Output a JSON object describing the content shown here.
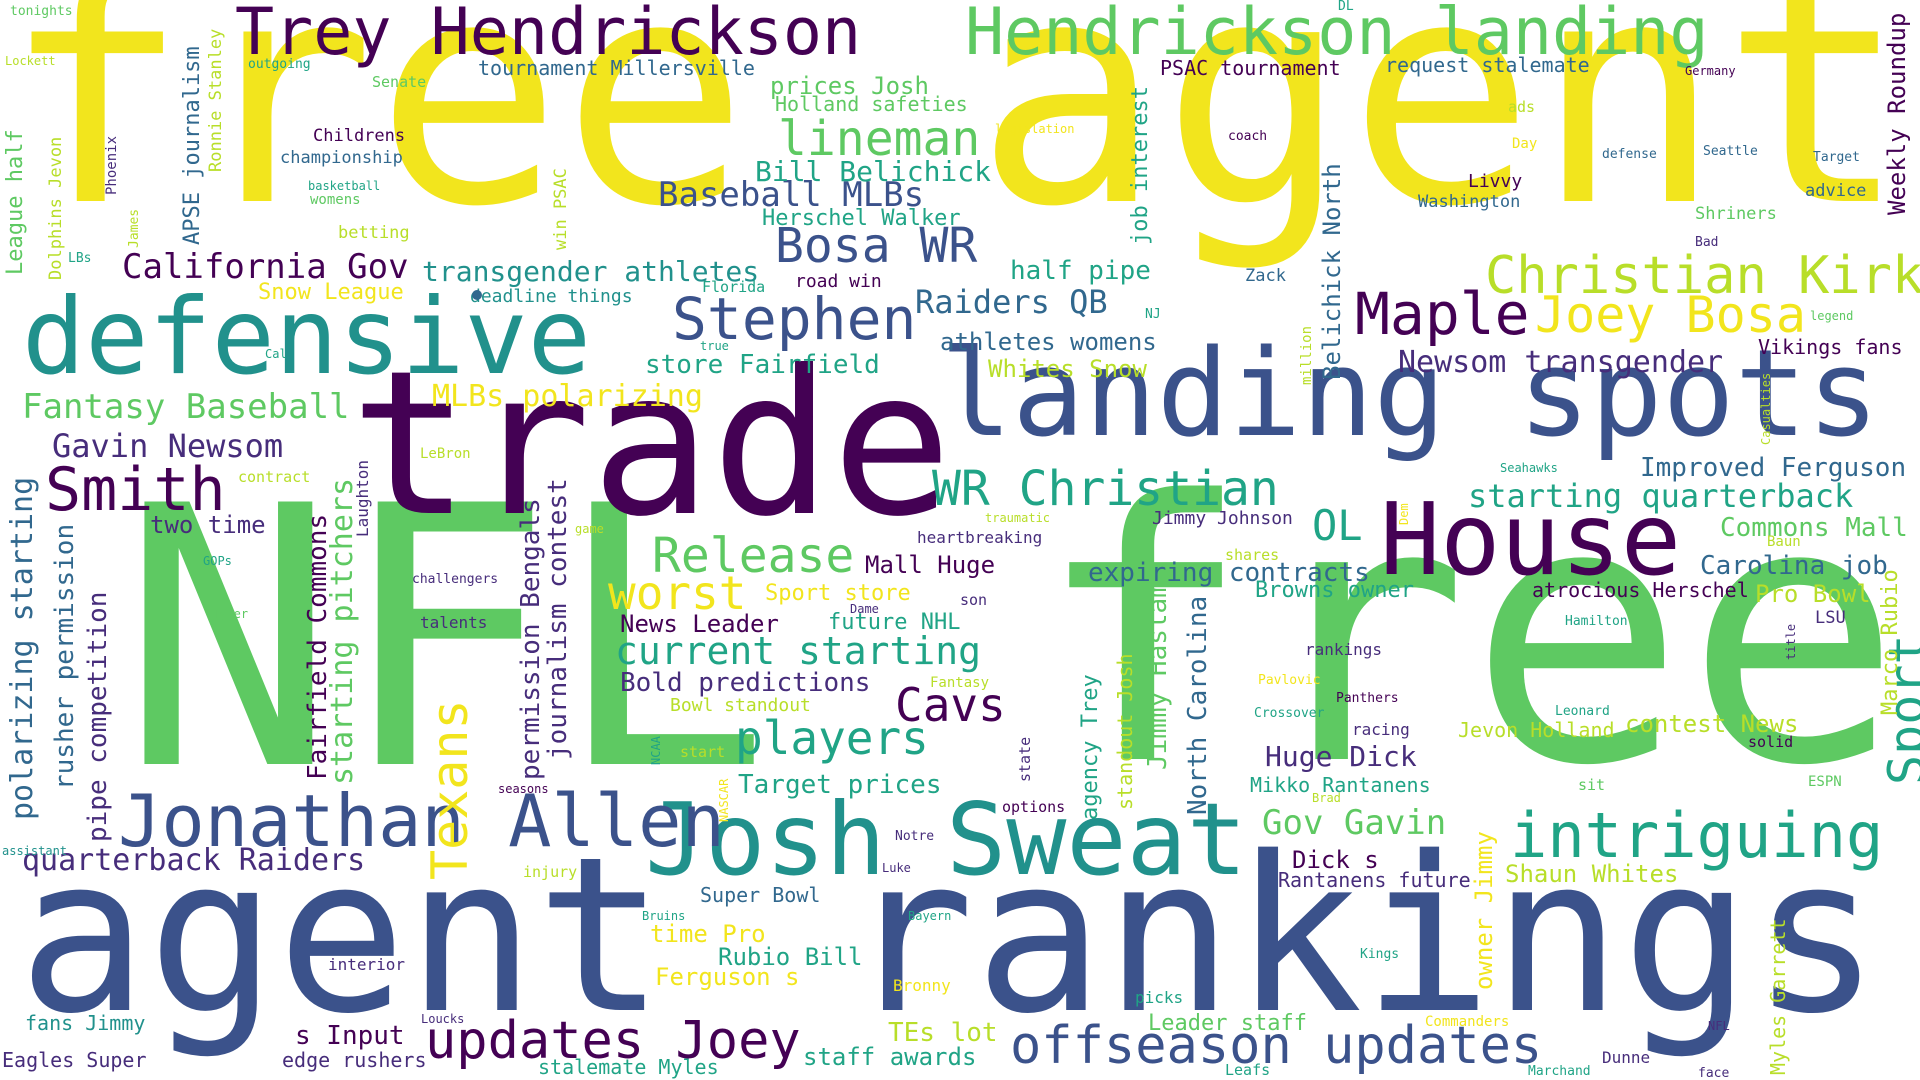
{
  "palette": {
    "yellow": "#f2e51d",
    "lime": "#b8de29",
    "green": "#5ec962",
    "teal": "#20a486",
    "cyan": "#21918c",
    "blue": "#3b528b",
    "indigo": "#31688e",
    "purple": "#440154",
    "violet": "#472d7b"
  },
  "words": [
    {
      "text": "free",
      "color": "yellow"
    },
    {
      "text": "agent",
      "color": "yellow"
    },
    {
      "text": "NFL",
      "color": "green"
    },
    {
      "text": "free",
      "color": "green"
    },
    {
      "text": "agent",
      "color": "blue"
    },
    {
      "text": "rankings",
      "color": "blue"
    },
    {
      "text": "trade",
      "color": "purple"
    },
    {
      "text": "landing spots",
      "color": "blue"
    },
    {
      "text": "defensive",
      "color": "cyan"
    },
    {
      "text": "House",
      "color": "purple"
    },
    {
      "text": "Josh Sweat",
      "color": "cyan"
    },
    {
      "text": "Trey Hendrickson",
      "color": "purple"
    },
    {
      "text": "Hendrickson landing",
      "color": "green"
    },
    {
      "text": "Jonathan Allen",
      "color": "blue"
    },
    {
      "text": "offseason updates",
      "color": "blue"
    },
    {
      "text": "updates Joey",
      "color": "purple"
    },
    {
      "text": "intriguing",
      "color": "teal"
    },
    {
      "text": "Christian Kirk",
      "color": "lime"
    },
    {
      "text": "Maple",
      "color": "purple"
    },
    {
      "text": "Joey Bosa",
      "color": "yellow"
    },
    {
      "text": "Stephen",
      "color": "blue"
    },
    {
      "text": "Bosa WR",
      "color": "blue"
    },
    {
      "text": "WR Christian",
      "color": "teal"
    },
    {
      "text": "Smith",
      "color": "purple"
    },
    {
      "text": "lineman",
      "color": "green"
    },
    {
      "text": "Release",
      "color": "green"
    },
    {
      "text": "worst",
      "color": "yellow"
    },
    {
      "text": "players",
      "color": "teal"
    },
    {
      "text": "Cavs",
      "color": "purple"
    },
    {
      "text": "current starting",
      "color": "teal"
    },
    {
      "text": "OL",
      "color": "teal"
    },
    {
      "text": "Texans",
      "color": "yellow"
    },
    {
      "text": "Sport",
      "color": "teal"
    },
    {
      "text": "Baseball MLBs",
      "color": "blue"
    },
    {
      "text": "California Gov",
      "color": "purple"
    },
    {
      "text": "Fantasy Baseball",
      "color": "green"
    },
    {
      "text": "Gavin Newsom",
      "color": "violet"
    },
    {
      "text": "starting quarterback",
      "color": "teal"
    },
    {
      "text": "Raiders QB",
      "color": "indigo"
    },
    {
      "text": "quarterback Raiders",
      "color": "violet"
    },
    {
      "text": "Newsom transgender",
      "color": "violet"
    },
    {
      "text": "MLBs polarizing",
      "color": "yellow"
    },
    {
      "text": "transgender athletes",
      "color": "cyan"
    },
    {
      "text": "Gov Gavin",
      "color": "green"
    },
    {
      "text": "Bill Belichick",
      "color": "teal"
    },
    {
      "text": "Improved Ferguson",
      "color": "indigo"
    },
    {
      "text": "Carolina job",
      "color": "indigo"
    },
    {
      "text": "Commons Mall",
      "color": "green"
    },
    {
      "text": "Huge Dick",
      "color": "violet"
    },
    {
      "text": "half pipe",
      "color": "teal"
    },
    {
      "text": "Shaun Whites",
      "color": "lime"
    },
    {
      "text": "Whites Snow",
      "color": "lime"
    },
    {
      "text": "Snow League",
      "color": "yellow"
    },
    {
      "text": "expiring contracts",
      "color": "indigo"
    },
    {
      "text": "Bold predictions",
      "color": "violet"
    },
    {
      "text": "Pro Bowl",
      "color": "lime"
    },
    {
      "text": "Target prices",
      "color": "teal"
    },
    {
      "text": "store Fairfield",
      "color": "teal"
    },
    {
      "text": "athletes womens",
      "color": "indigo"
    },
    {
      "text": "Herschel Walker",
      "color": "teal"
    },
    {
      "text": "Mall Huge",
      "color": "purple"
    },
    {
      "text": "Sport store",
      "color": "yellow"
    },
    {
      "text": "News Leader",
      "color": "purple"
    },
    {
      "text": "future NHL",
      "color": "teal"
    },
    {
      "text": "Rubio Bill",
      "color": "teal"
    },
    {
      "text": "time Pro",
      "color": "yellow"
    },
    {
      "text": "Ferguson s",
      "color": "yellow"
    },
    {
      "text": "Dick s",
      "color": "purple"
    },
    {
      "text": "contest News",
      "color": "lime"
    },
    {
      "text": "Jevon Holland",
      "color": "lime"
    },
    {
      "text": "Mikko Rantanens",
      "color": "teal"
    },
    {
      "text": "Rantanens future",
      "color": "violet"
    },
    {
      "text": "Browns owner",
      "color": "teal"
    },
    {
      "text": "atrocious Herschel",
      "color": "purple"
    },
    {
      "text": "two time",
      "color": "violet"
    },
    {
      "text": "prices Josh",
      "color": "green"
    },
    {
      "text": "Holland safeties",
      "color": "green"
    },
    {
      "text": "Vikings fans",
      "color": "purple"
    },
    {
      "text": "PSAC tournament",
      "color": "purple"
    },
    {
      "text": "request stalemate",
      "color": "indigo"
    },
    {
      "text": "tournament Millersville",
      "color": "indigo"
    },
    {
      "text": "Jimmy Johnson",
      "color": "violet"
    },
    {
      "text": "s Input",
      "color": "purple"
    },
    {
      "text": "edge rushers",
      "color": "violet"
    },
    {
      "text": "TEs lot",
      "color": "lime"
    },
    {
      "text": "Leader staff",
      "color": "green"
    },
    {
      "text": "staff awards",
      "color": "teal"
    },
    {
      "text": "stalemate Myles",
      "color": "teal"
    },
    {
      "text": "Super Bowl",
      "color": "indigo"
    },
    {
      "text": "Eagles Super",
      "color": "violet"
    },
    {
      "text": "fans Jimmy",
      "color": "cyan"
    },
    {
      "text": "Bowl standout",
      "color": "lime"
    },
    {
      "text": "road win",
      "color": "purple"
    },
    {
      "text": "deadline things",
      "color": "cyan"
    },
    {
      "text": "Livvy",
      "color": "purple"
    },
    {
      "text": "Washington",
      "color": "indigo"
    },
    {
      "text": "Shriners",
      "color": "green"
    },
    {
      "text": "advice",
      "color": "indigo"
    },
    {
      "text": "Childrens",
      "color": "purple"
    },
    {
      "text": "championship",
      "color": "indigo"
    },
    {
      "text": "betting",
      "color": "lime"
    },
    {
      "text": "womens",
      "color": "green"
    },
    {
      "text": "basketball",
      "color": "teal"
    },
    {
      "text": "Senate",
      "color": "green"
    },
    {
      "text": "outgoing",
      "color": "teal"
    },
    {
      "text": "Lockett",
      "color": "lime"
    },
    {
      "text": "tonights",
      "color": "green"
    },
    {
      "text": "Germany",
      "color": "purple"
    },
    {
      "text": "coach",
      "color": "purple"
    },
    {
      "text": "ads",
      "color": "lime"
    },
    {
      "text": "Day",
      "color": "yellow"
    },
    {
      "text": "defense",
      "color": "indigo"
    },
    {
      "text": "Seattle",
      "color": "indigo"
    },
    {
      "text": "Target",
      "color": "indigo"
    },
    {
      "text": "legislation",
      "color": "yellow"
    },
    {
      "text": "DL",
      "color": "teal"
    },
    {
      "text": "Zack",
      "color": "indigo"
    },
    {
      "text": "Bad",
      "color": "violet"
    },
    {
      "text": "legend",
      "color": "green"
    },
    {
      "text": "NJ",
      "color": "teal"
    },
    {
      "text": "Florida",
      "color": "teal"
    },
    {
      "text": "true",
      "color": "teal"
    },
    {
      "text": "Cal",
      "color": "teal"
    },
    {
      "text": "LeBron",
      "color": "lime"
    },
    {
      "text": "contract",
      "color": "lime"
    },
    {
      "text": "heartbreaking",
      "color": "violet"
    },
    {
      "text": "traumatic",
      "color": "lime"
    },
    {
      "text": "shares",
      "color": "lime"
    },
    {
      "text": "Seahawks",
      "color": "teal"
    },
    {
      "text": "Baun",
      "color": "lime"
    },
    {
      "text": "LSU",
      "color": "violet"
    },
    {
      "text": "Hamilton",
      "color": "teal"
    },
    {
      "text": "Dame",
      "color": "violet"
    },
    {
      "text": "son",
      "color": "violet"
    },
    {
      "text": "Fantasy",
      "color": "lime"
    },
    {
      "text": "Pavlovic",
      "color": "yellow"
    },
    {
      "text": "Crossover",
      "color": "teal"
    },
    {
      "text": "Panthers",
      "color": "purple"
    },
    {
      "text": "racing",
      "color": "violet"
    },
    {
      "text": "Leonard",
      "color": "teal"
    },
    {
      "text": "solid",
      "color": "purple"
    },
    {
      "text": "rankings",
      "color": "violet"
    },
    {
      "text": "sit",
      "color": "green"
    },
    {
      "text": "ESPN",
      "color": "green"
    },
    {
      "text": "Brad",
      "color": "lime"
    },
    {
      "text": "options",
      "color": "purple"
    },
    {
      "text": "Notre",
      "color": "violet"
    },
    {
      "text": "Luke",
      "color": "violet"
    },
    {
      "text": "Bruins",
      "color": "teal"
    },
    {
      "text": "Bayern",
      "color": "teal"
    },
    {
      "text": "Kings",
      "color": "teal"
    },
    {
      "text": "Bronny",
      "color": "yellow"
    },
    {
      "text": "picks",
      "color": "teal"
    },
    {
      "text": "Loucks",
      "color": "violet"
    },
    {
      "text": "Commanders",
      "color": "yellow"
    },
    {
      "text": "NFL",
      "color": "violet"
    },
    {
      "text": "Dunne",
      "color": "violet"
    },
    {
      "text": "Marchand",
      "color": "teal"
    },
    {
      "text": "face",
      "color": "violet"
    },
    {
      "text": "Leafs",
      "color": "teal"
    },
    {
      "text": "interior",
      "color": "violet"
    },
    {
      "text": "injury",
      "color": "lime"
    },
    {
      "text": "assistant",
      "color": "cyan"
    },
    {
      "text": "seasons",
      "color": "purple"
    },
    {
      "text": "start",
      "color": "lime"
    },
    {
      "text": "GOPs",
      "color": "teal"
    },
    {
      "text": "challengers",
      "color": "violet"
    },
    {
      "text": "Tyler",
      "color": "green"
    },
    {
      "text": "talents",
      "color": "violet"
    },
    {
      "text": "game",
      "color": "lime"
    },
    {
      "text": "LBs",
      "color": "teal"
    },
    {
      "text": "League half",
      "color": "green"
    },
    {
      "text": "Dolphins Jevon",
      "color": "lime"
    },
    {
      "text": "Phoenix",
      "color": "violet"
    },
    {
      "text": "James",
      "color": "lime"
    },
    {
      "text": "APSE journalism",
      "color": "indigo"
    },
    {
      "text": "Ronnie Stanley",
      "color": "lime"
    },
    {
      "text": "win PSAC",
      "color": "lime"
    },
    {
      "text": "job interest",
      "color": "teal"
    },
    {
      "text": "Belichick North",
      "color": "indigo"
    },
    {
      "text": "million",
      "color": "lime"
    },
    {
      "text": "Weekly Roundup",
      "color": "purple"
    },
    {
      "text": "polarizing starting",
      "color": "indigo"
    },
    {
      "text": "rusher permission",
      "color": "indigo"
    },
    {
      "text": "pipe competition",
      "color": "violet"
    },
    {
      "text": "Fairfield Commons",
      "color": "purple"
    },
    {
      "text": "starting pitchers",
      "color": "green"
    },
    {
      "text": "Laughton",
      "color": "violet"
    },
    {
      "text": "permission Bengals",
      "color": "violet"
    },
    {
      "text": "journalism contest",
      "color": "violet"
    },
    {
      "text": "NCAA",
      "color": "teal"
    },
    {
      "text": "NASCAR",
      "color": "yellow"
    },
    {
      "text": "state",
      "color": "violet"
    },
    {
      "text": "agency Trey",
      "color": "teal"
    },
    {
      "text": "standout Josh",
      "color": "lime"
    },
    {
      "text": "Jimmy Haslam",
      "color": "green"
    },
    {
      "text": "North Carolina",
      "color": "indigo"
    },
    {
      "text": "owner Jimmy",
      "color": "yellow"
    },
    {
      "text": "Dem",
      "color": "yellow"
    },
    {
      "text": "Casualties",
      "color": "lime"
    },
    {
      "text": "Marco Rubio",
      "color": "lime"
    },
    {
      "text": "title",
      "color": "violet"
    },
    {
      "text": "Myles Garrett",
      "color": "lime"
    }
  ]
}
